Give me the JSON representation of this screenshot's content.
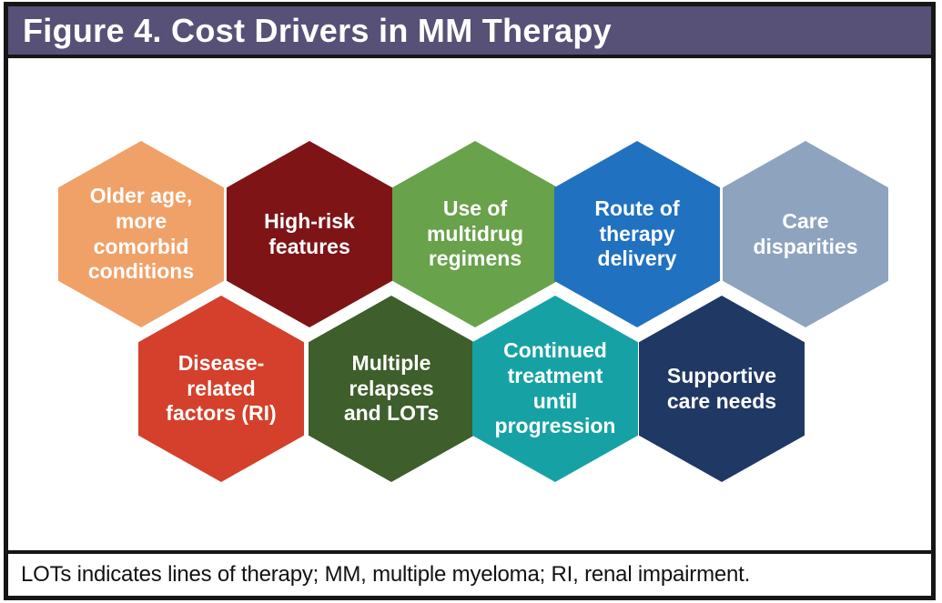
{
  "header": {
    "title": "Figure 4. Cost Drivers in MM Therapy",
    "background_color": "#575177",
    "text_color": "#ffffff"
  },
  "hexagons": [
    {
      "id": "older-age-comorbid",
      "label": "Older age,\nmore\ncomorbid\nconditions",
      "color": "#f0a168"
    },
    {
      "id": "high-risk-features",
      "label": "High-risk\nfeatures",
      "color": "#7e1416"
    },
    {
      "id": "multidrug-regimens",
      "label": "Use of\nmultidrug\nregimens",
      "color": "#68a24a"
    },
    {
      "id": "route-of-therapy",
      "label": "Route of\ntherapy\ndelivery",
      "color": "#2171c1"
    },
    {
      "id": "care-disparities",
      "label": "Care\ndisparities",
      "color": "#8ea3be"
    },
    {
      "id": "disease-related-factors",
      "label": "Disease-\nrelated\nfactors (RI)",
      "color": "#d4402b"
    },
    {
      "id": "multiple-relapses-lots",
      "label": "Multiple\nrelapses\nand LOTs",
      "color": "#3e5e2c"
    },
    {
      "id": "continued-treatment",
      "label": "Continued\ntreatment\nuntil\nprogression",
      "color": "#16a2a4"
    },
    {
      "id": "supportive-care-needs",
      "label": "Supportive\ncare needs",
      "color": "#1f3864"
    }
  ],
  "footer": {
    "text": "LOTs indicates lines of therapy; MM, multiple myeloma; RI, renal impairment."
  }
}
